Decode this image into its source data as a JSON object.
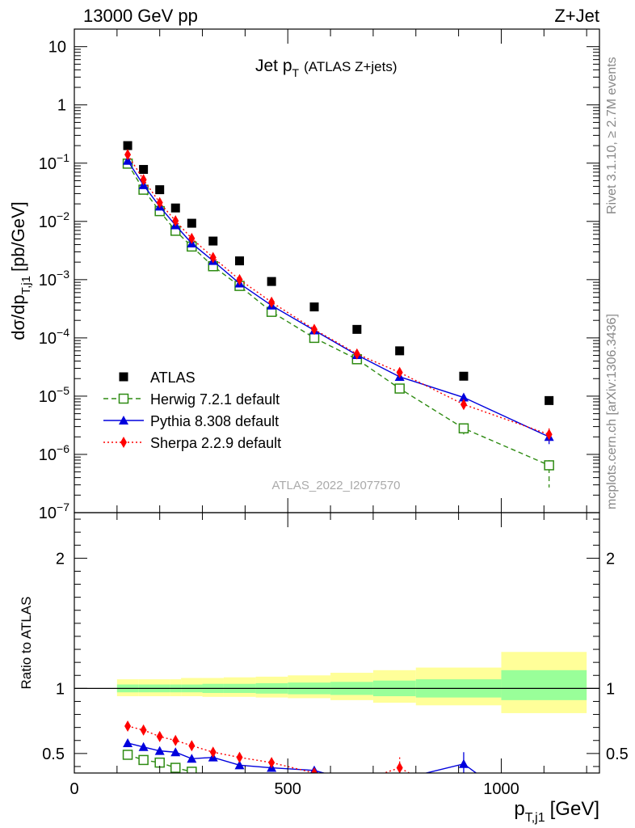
{
  "header": {
    "energy_label": "13000 GeV pp",
    "process_label": "Z+Jet",
    "rivet_label": "Rivet 3.1.10, ≥ 2.7M events",
    "mcplots_label": "mcplots.cern.ch [arXiv:1306.3436]",
    "analysis_id": "ATLAS_2022_I2077570"
  },
  "colors": {
    "atlas": "#000000",
    "herwig": "#2e8b12",
    "pythia": "#0000dd",
    "sherpa": "#ff0000",
    "band_inner": "#99ff99",
    "band_outer": "#ffff99"
  },
  "chart_data": [
    {
      "type": "scatter",
      "title": "Jet p_T",
      "title_main": "Jet p",
      "title_sub": "T",
      "title_extra": "(ATLAS Z+jets)",
      "xlabel": "p_T,j1 [GeV]",
      "ylabel": "dσ/dp_T,j1 [pb/GeV]",
      "ylabel_main": "dσ/dp",
      "ylabel_sub": "T,j1",
      "ylabel_unit": "[pb/GeV]",
      "yscale": "log",
      "ylim": [
        1e-07,
        20
      ],
      "xlim": [
        0,
        1230
      ],
      "legend_position": "bottom-left",
      "y_ticks": [
        {
          "v": 1e-07,
          "label": "10",
          "exp": "−7"
        },
        {
          "v": 1e-06,
          "label": "10",
          "exp": "−6"
        },
        {
          "v": 1e-05,
          "label": "10",
          "exp": "−5"
        },
        {
          "v": 0.0001,
          "label": "10",
          "exp": "−4"
        },
        {
          "v": 0.001,
          "label": "10",
          "exp": "−3"
        },
        {
          "v": 0.01,
          "label": "10",
          "exp": "−2"
        },
        {
          "v": 0.1,
          "label": "10",
          "exp": "−1"
        },
        {
          "v": 1,
          "label": "1",
          "exp": ""
        },
        {
          "v": 10,
          "label": "10",
          "exp": ""
        }
      ],
      "series": [
        {
          "name": "ATLAS",
          "key": "atlas",
          "marker": "square",
          "x": [
            125,
            162,
            200,
            237,
            275,
            325,
            387,
            462,
            562,
            662,
            762,
            912,
            1112
          ],
          "y": [
            0.2,
            0.078,
            0.035,
            0.017,
            0.0093,
            0.0046,
            0.0021,
            0.00093,
            0.00034,
            0.00014,
            6e-05,
            2.2e-05,
            8.4e-06
          ]
        },
        {
          "name": "Herwig 7.2.1 default",
          "key": "herwig",
          "marker": "open-square",
          "line": "dashed",
          "x": [
            125,
            162,
            200,
            237,
            275,
            325,
            387,
            462,
            562,
            662,
            762,
            912,
            1112
          ],
          "y": [
            0.098,
            0.035,
            0.015,
            0.0069,
            0.0037,
            0.0017,
            0.00078,
            0.00028,
            0.0001,
            4.3e-05,
            1.35e-05,
            2.8e-06,
            6.5e-07
          ],
          "err_lo": [
            0,
            0,
            0,
            0,
            0,
            0,
            0,
            0,
            0,
            0,
            0,
            6e-07,
            3.8e-07
          ],
          "err_hi": [
            0,
            0,
            0,
            0,
            0,
            0,
            0,
            0,
            0,
            0,
            0,
            6e-07,
            1.5e-07
          ]
        },
        {
          "name": "Pythia 8.308 default",
          "key": "pythia",
          "marker": "triangle",
          "line": "solid",
          "x": [
            125,
            162,
            200,
            237,
            275,
            325,
            387,
            462,
            562,
            662,
            762,
            912,
            1112
          ],
          "y": [
            0.11,
            0.042,
            0.018,
            0.0086,
            0.0042,
            0.0021,
            0.00086,
            0.00036,
            0.000135,
            5.1e-05,
            2.15e-05,
            9.5e-06,
            2e-06
          ],
          "err_lo": [
            0,
            0,
            0,
            0,
            0,
            0,
            0,
            0,
            0,
            0,
            0,
            0,
            5e-07
          ],
          "err_hi": [
            0,
            0,
            0,
            0,
            0,
            0,
            0,
            0,
            0,
            0,
            0,
            0,
            5e-07
          ]
        },
        {
          "name": "Sherpa 2.2.9 default",
          "key": "sherpa",
          "marker": "diamond",
          "line": "dotted",
          "x": [
            125,
            162,
            200,
            237,
            275,
            325,
            387,
            462,
            562,
            662,
            762,
            912,
            1112
          ],
          "y": [
            0.14,
            0.052,
            0.021,
            0.0102,
            0.0051,
            0.0024,
            0.001,
            0.00041,
            0.00014,
            5.3e-05,
            2.55e-05,
            7.2e-06,
            2.2e-06
          ],
          "err_lo": [
            0,
            0,
            0,
            0,
            0,
            0,
            0,
            0,
            0,
            0,
            0,
            1.2e-06,
            5e-07
          ],
          "err_hi": [
            0,
            0,
            0,
            0,
            0,
            0,
            0,
            0,
            0,
            0,
            0,
            1.2e-06,
            6e-07
          ]
        }
      ]
    },
    {
      "type": "scatter",
      "xlabel": "p_T,j1 [GeV]",
      "xlabel_main": "p",
      "xlabel_sub": "T,j1",
      "xlabel_unit": "[GeV]",
      "ylabel": "Ratio to ATLAS",
      "ylim": [
        0.35,
        2.35
      ],
      "xlim": [
        0,
        1230
      ],
      "x_ticks": [
        0,
        500,
        1000
      ],
      "y_ticks": [
        0.5,
        1,
        2
      ],
      "reference_line": 1,
      "bands": [
        {
          "x0": 100,
          "x1": 150,
          "inner": [
            0.97,
            1.03
          ],
          "outer": [
            0.94,
            1.07
          ]
        },
        {
          "x0": 150,
          "x1": 175,
          "inner": [
            0.97,
            1.03
          ],
          "outer": [
            0.94,
            1.07
          ]
        },
        {
          "x0": 175,
          "x1": 225,
          "inner": [
            0.97,
            1.03
          ],
          "outer": [
            0.94,
            1.07
          ]
        },
        {
          "x0": 225,
          "x1": 250,
          "inner": [
            0.97,
            1.03
          ],
          "outer": [
            0.94,
            1.07
          ]
        },
        {
          "x0": 250,
          "x1": 300,
          "inner": [
            0.97,
            1.03
          ],
          "outer": [
            0.94,
            1.08
          ]
        },
        {
          "x0": 300,
          "x1": 350,
          "inner": [
            0.965,
            1.035
          ],
          "outer": [
            0.935,
            1.08
          ]
        },
        {
          "x0": 350,
          "x1": 425,
          "inner": [
            0.965,
            1.035
          ],
          "outer": [
            0.935,
            1.085
          ]
        },
        {
          "x0": 425,
          "x1": 500,
          "inner": [
            0.96,
            1.04
          ],
          "outer": [
            0.93,
            1.09
          ]
        },
        {
          "x0": 500,
          "x1": 600,
          "inner": [
            0.955,
            1.045
          ],
          "outer": [
            0.925,
            1.1
          ]
        },
        {
          "x0": 600,
          "x1": 700,
          "inner": [
            0.95,
            1.05
          ],
          "outer": [
            0.91,
            1.12
          ]
        },
        {
          "x0": 700,
          "x1": 800,
          "inner": [
            0.94,
            1.06
          ],
          "outer": [
            0.89,
            1.14
          ]
        },
        {
          "x0": 800,
          "x1": 1000,
          "inner": [
            0.93,
            1.07
          ],
          "outer": [
            0.87,
            1.16
          ]
        },
        {
          "x0": 1000,
          "x1": 1200,
          "inner": [
            0.91,
            1.14
          ],
          "outer": [
            0.81,
            1.28
          ]
        }
      ],
      "series": [
        {
          "name": "Herwig 7.2.1 default",
          "key": "herwig",
          "marker": "open-square",
          "line": "dashed",
          "x": [
            125,
            162,
            200,
            237,
            275
          ],
          "y": [
            0.49,
            0.45,
            0.43,
            0.39,
            0.36
          ],
          "err_lo": [
            0,
            0,
            0,
            0,
            0
          ],
          "err_hi": [
            0,
            0,
            0,
            0,
            0
          ]
        },
        {
          "name": "Pythia 8.308 default",
          "key": "pythia",
          "marker": "triangle",
          "line": "solid",
          "x": [
            125,
            162,
            200,
            237,
            275,
            325,
            387,
            462,
            562,
            662,
            762,
            912,
            962
          ],
          "y": [
            0.58,
            0.55,
            0.52,
            0.51,
            0.46,
            0.47,
            0.41,
            0.39,
            0.37,
            0.28,
            0.3,
            0.42,
            0.3
          ],
          "err_lo": [
            0,
            0,
            0,
            0,
            0,
            0,
            0,
            0,
            0.03,
            0,
            0,
            0.1,
            0
          ],
          "err_hi": [
            0,
            0,
            0,
            0,
            0,
            0,
            0,
            0,
            0.03,
            0,
            0,
            0.09,
            0
          ]
        },
        {
          "name": "Sherpa 2.2.9 default",
          "key": "sherpa",
          "marker": "diamond",
          "line": "dotted",
          "x": [
            125,
            162,
            200,
            237,
            275,
            325,
            387,
            462,
            562,
            662,
            762,
            812
          ],
          "y": [
            0.71,
            0.68,
            0.63,
            0.6,
            0.56,
            0.51,
            0.47,
            0.43,
            0.35,
            0.28,
            0.39,
            0.3
          ],
          "err_lo": [
            0,
            0,
            0,
            0,
            0,
            0,
            0,
            0,
            0,
            0,
            0.06,
            0
          ],
          "err_hi": [
            0,
            0,
            0,
            0,
            0,
            0,
            0,
            0,
            0,
            0,
            0.08,
            0
          ]
        }
      ]
    }
  ]
}
